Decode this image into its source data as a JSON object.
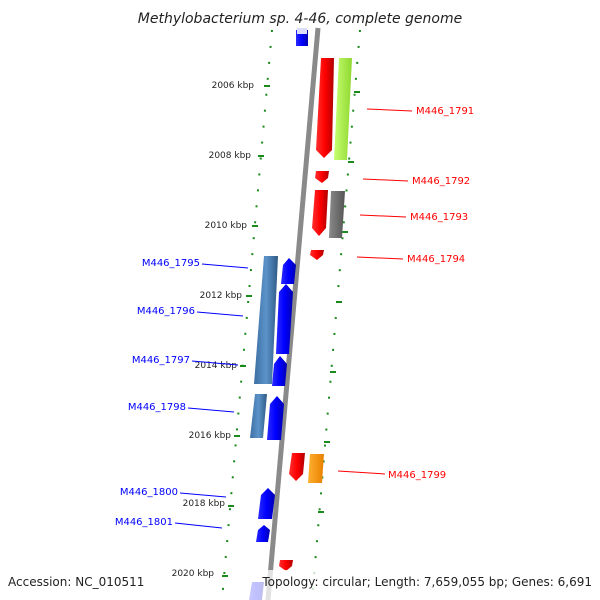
{
  "title": "Methylobacterium sp. 4-46, complete genome",
  "footer": {
    "accession": "Accession: NC_010511",
    "summary": "Topology: circular; Length: 7,659,055 bp; Genes: 6,691"
  },
  "ticks": [
    {
      "label": "2006 kbp",
      "kbp": 2006
    },
    {
      "label": "2008 kbp",
      "kbp": 2008
    },
    {
      "label": "2010 kbp",
      "kbp": 2010
    },
    {
      "label": "2012 kbp",
      "kbp": 2012
    },
    {
      "label": "2014 kbp",
      "kbp": 2014
    },
    {
      "label": "2016 kbp",
      "kbp": 2016
    },
    {
      "label": "2018 kbp",
      "kbp": 2018
    },
    {
      "label": "2020 kbp",
      "kbp": 2020
    }
  ],
  "genes_forward": [
    {
      "label": "M446_1791",
      "color": "#ff0000"
    },
    {
      "label": "M446_1792",
      "color": "#ff0000"
    },
    {
      "label": "M446_1793",
      "color": "#ff0000"
    },
    {
      "label": "M446_1794",
      "color": "#ff0000"
    },
    {
      "label": "M446_1799",
      "color": "#ff0000"
    }
  ],
  "genes_reverse": [
    {
      "label": "M446_1795",
      "color": "#0000ff"
    },
    {
      "label": "M446_1796",
      "color": "#0000ff"
    },
    {
      "label": "M446_1797",
      "color": "#0000ff"
    },
    {
      "label": "M446_1798",
      "color": "#0000ff"
    },
    {
      "label": "M446_1800",
      "color": "#0000ff"
    },
    {
      "label": "M446_1801",
      "color": "#0000ff"
    }
  ],
  "colors": {
    "backbone": "#8a8a8a",
    "dots": "#1a8a1a",
    "forward": "#ff0000",
    "reverse": "#0000ff",
    "lime": "#a8f040",
    "gray_block": "#707070",
    "orange": "#ff9900",
    "steel": "#4f86bd"
  }
}
